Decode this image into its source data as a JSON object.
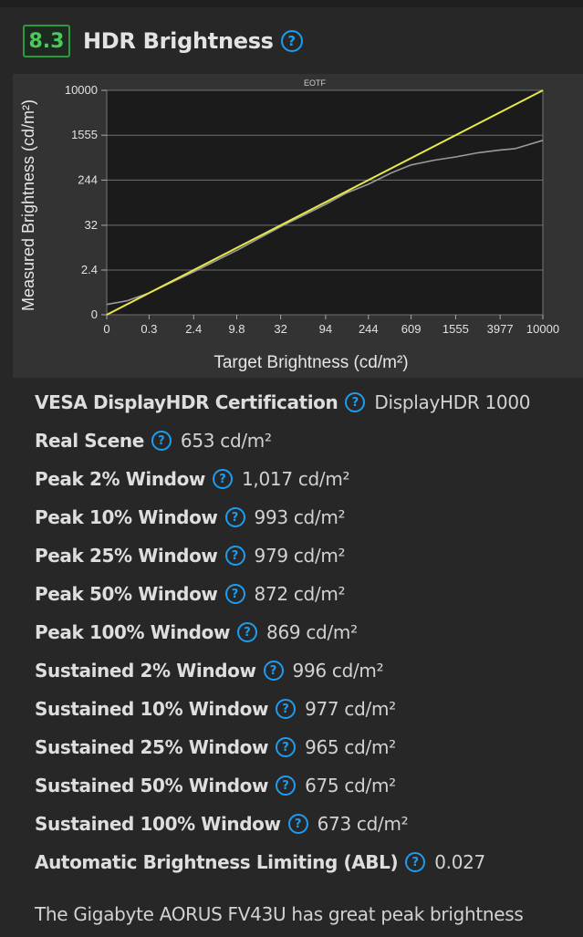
{
  "header": {
    "score": "8.3",
    "title": "HDR Brightness",
    "help_glyph": "?"
  },
  "chart_data": {
    "type": "line",
    "title": "EOTF",
    "xlabel": "Target Brightness (cd/m²)",
    "ylabel": "Measured Brightness (cd/m²)",
    "x_scale": "pq",
    "y_scale": "pq",
    "x_ticks": [
      "0",
      "0.3",
      "2.4",
      "9.8",
      "32",
      "94",
      "244",
      "609",
      "1555",
      "3977",
      "10000"
    ],
    "y_ticks": [
      "0",
      "2.4",
      "32",
      "244",
      "1555",
      "10000"
    ],
    "grid": true,
    "series": [
      {
        "color": "#e8e84a",
        "role": "target",
        "x": [
          0,
          10000
        ],
        "y": [
          0,
          10000
        ]
      },
      {
        "color": "#9a9a9a",
        "role": "measured",
        "x": [
          0,
          0.05,
          0.3,
          2.4,
          9.8,
          32,
          94,
          150,
          244,
          400,
          609,
          1000,
          1555,
          2500,
          3977,
          5500,
          10000
        ],
        "y": [
          0.05,
          0.1,
          0.3,
          2.1,
          8.5,
          30,
          85,
          140,
          205,
          330,
          460,
          560,
          640,
          760,
          850,
          900,
          1260
        ]
      }
    ]
  },
  "rows": [
    {
      "label": "VESA DisplayHDR Certification",
      "value": "DisplayHDR 1000"
    },
    {
      "label": "Real Scene",
      "value": "653 cd/m²"
    },
    {
      "label": "Peak 2% Window",
      "value": "1,017 cd/m²"
    },
    {
      "label": "Peak 10% Window",
      "value": "993 cd/m²"
    },
    {
      "label": "Peak 25% Window",
      "value": "979 cd/m²"
    },
    {
      "label": "Peak 50% Window",
      "value": "872 cd/m²"
    },
    {
      "label": "Peak 100% Window",
      "value": "869 cd/m²"
    },
    {
      "label": "Sustained 2% Window",
      "value": "996 cd/m²"
    },
    {
      "label": "Sustained 10% Window",
      "value": "977 cd/m²"
    },
    {
      "label": "Sustained 25% Window",
      "value": "965 cd/m²"
    },
    {
      "label": "Sustained 50% Window",
      "value": "675 cd/m²"
    },
    {
      "label": "Sustained 100% Window",
      "value": "673 cd/m²"
    },
    {
      "label": "Automatic Brightness Limiting (ABL)",
      "value": "0.027"
    }
  ],
  "summary": "The Gigabyte AORUS FV43U has great peak brightness",
  "colors": {
    "background": "#272727",
    "chart_panel": "#333333",
    "score_green": "#4cc85a",
    "help_blue": "#1e9cf0",
    "target_line": "#e8e84a",
    "measured_line": "#9a9a9a"
  },
  "icons": {
    "help": "question-circle-icon"
  }
}
